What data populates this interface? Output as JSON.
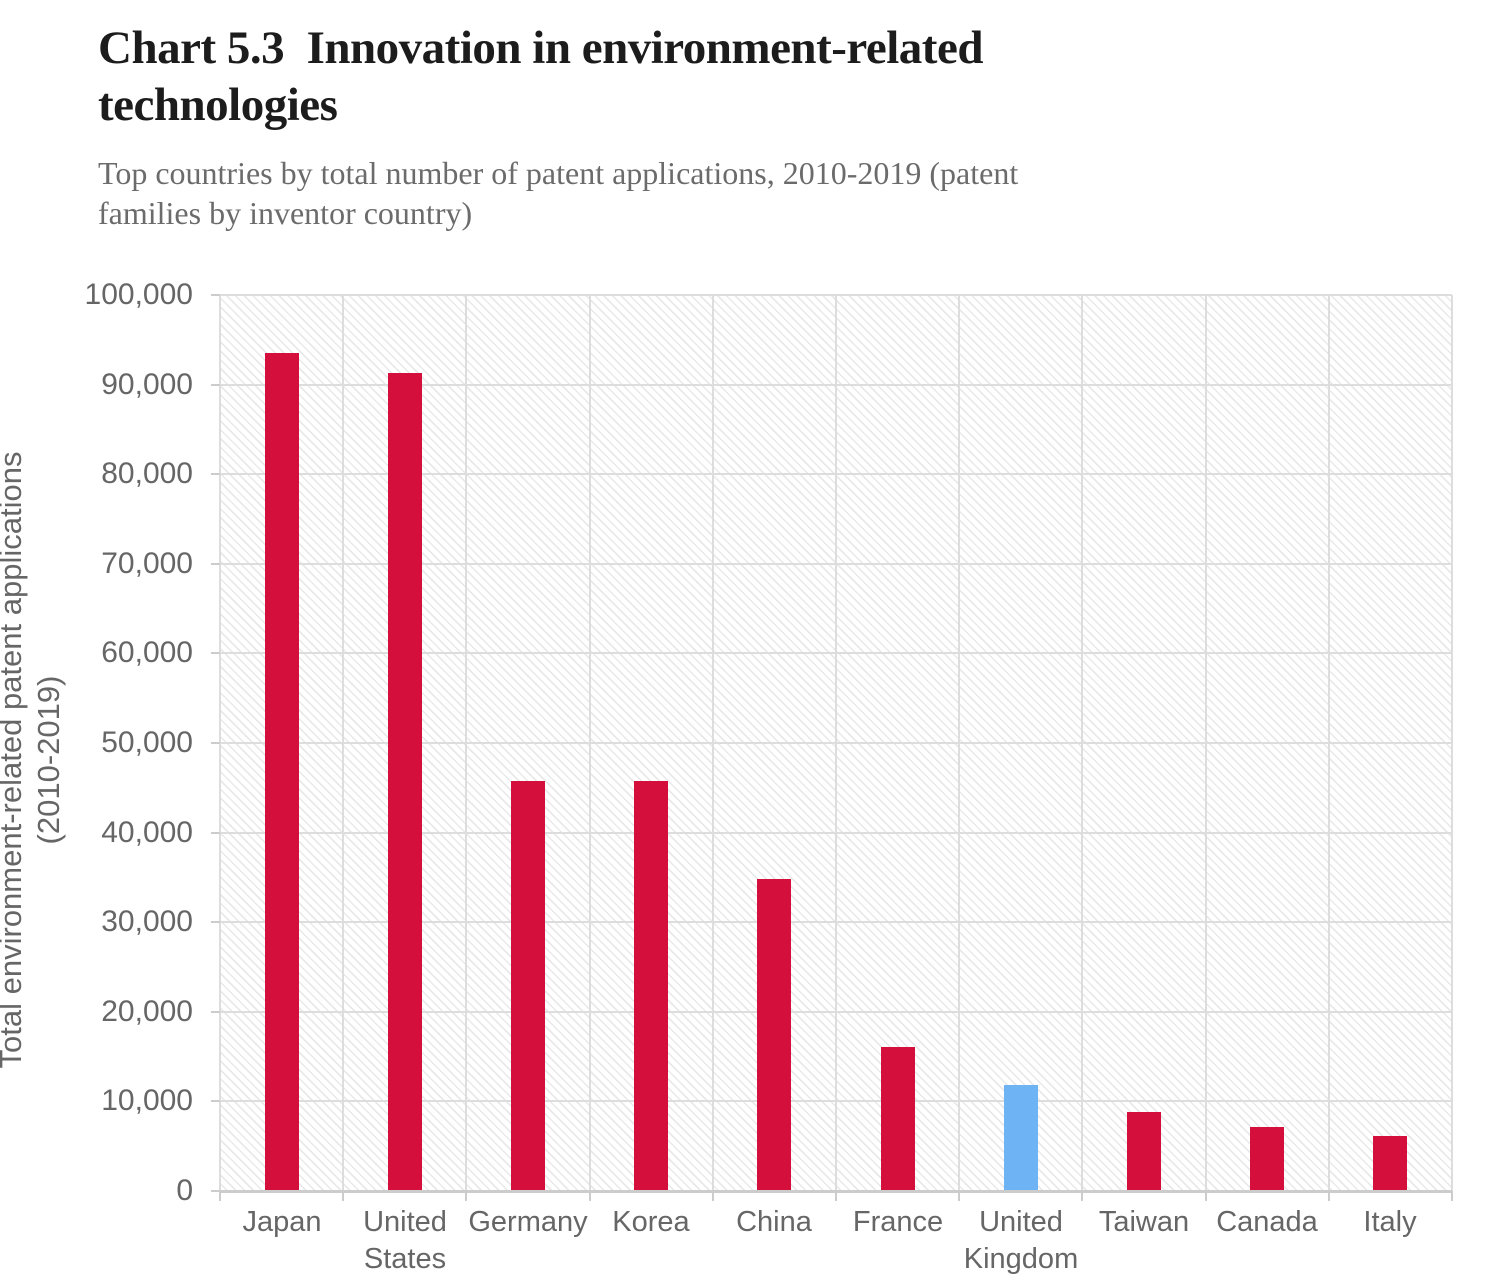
{
  "header": {
    "title": "Chart 5.3  Innovation in environment-related\ntechnologies",
    "subtitle": "Top countries by total number of patent applications, 2010-2019 (patent\nfamilies by inventor country)"
  },
  "chart_data": {
    "type": "bar",
    "title": "Chart 5.3 Innovation in environment-related technologies",
    "subtitle": "Top countries by total number of patent applications, 2010-2019 (patent families by inventor country)",
    "categories": [
      "Japan",
      "United States",
      "Germany",
      "Korea",
      "China",
      "France",
      "United Kingdom",
      "Taiwan",
      "Canada",
      "Italy"
    ],
    "values": [
      93400,
      91200,
      45700,
      45600,
      34700,
      16000,
      11700,
      8700,
      7000,
      6000
    ],
    "xlabel": "",
    "ylabel": "Total environment-related patent applications (2010-2019)",
    "ylabel_lines": [
      "Total environment-related patent applications",
      "(2010-2019)"
    ],
    "ylim": [
      0,
      100000
    ],
    "ytick_step": 10000,
    "ytick_labels": [
      "0",
      "10,000",
      "20,000",
      "30,000",
      "40,000",
      "50,000",
      "60,000",
      "70,000",
      "80,000",
      "90,000",
      "100,000"
    ],
    "grid": true,
    "legend": "none",
    "highlight": {
      "category": "United Kingdom",
      "index": 6
    }
  },
  "colors": {
    "bar": "#D50F3C",
    "highlight_bar": "#6EB4F5",
    "gridline": "#dddddd",
    "axis_line": "#cccccc",
    "axis_text": "#666666",
    "title_text": "#1c1c1c",
    "subtitle_text": "#6b6b6b"
  }
}
